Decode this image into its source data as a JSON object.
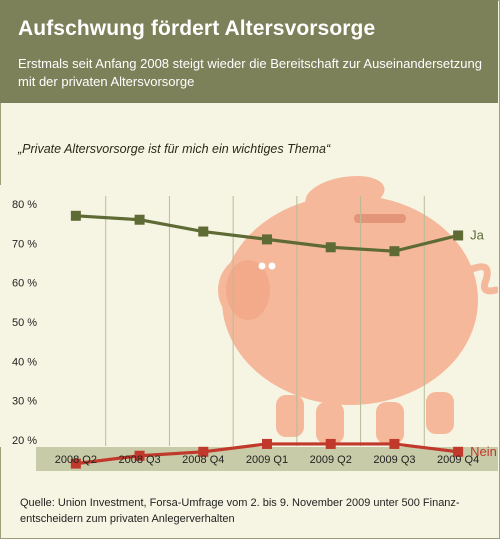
{
  "header": {
    "title": "Aufschwung fördert Altersvorsorge",
    "subtitle": "Erstmals seit Anfang 2008 steigt wieder die Bereitschaft zur Auseinandersetzung mit der privaten Altersvorsorge"
  },
  "quote": "„Private Altersvorsorge ist für mich ein wichtiges Thema“",
  "source": "Quelle: Union Investment, Forsa-Umfrage vom 2. bis 9. November 2009 unter 500 Finanz-entscheidern zum privaten Anlegerverhalten",
  "colors": {
    "header_bg": "#7d8159",
    "ja": "#5f6b35",
    "nein": "#c0392b",
    "piggy": "#f5b89b",
    "background": "#f6f5e3"
  },
  "chart_data": {
    "type": "line",
    "categories": [
      "2008 Q2",
      "2008 Q3",
      "2008 Q4",
      "2009 Q1",
      "2009 Q2",
      "2009 Q3",
      "2009 Q4"
    ],
    "series": [
      {
        "name": "Ja",
        "values": [
          77,
          76,
          73,
          71,
          69,
          68,
          72
        ],
        "color": "#5f6b35"
      },
      {
        "name": "Nein",
        "values": [
          14,
          16,
          17,
          19,
          19,
          19,
          17
        ],
        "color": "#c0392b"
      }
    ],
    "yticks": [
      "80 %",
      "70 %",
      "60 %",
      "50 %",
      "40 %",
      "30 %",
      "20 %"
    ],
    "ytick_values": [
      80,
      70,
      60,
      50,
      40,
      30,
      20
    ],
    "ylim": [
      10,
      80
    ],
    "grid": "vertical",
    "legend": "inline-right",
    "decoration": "piggy-bank"
  }
}
